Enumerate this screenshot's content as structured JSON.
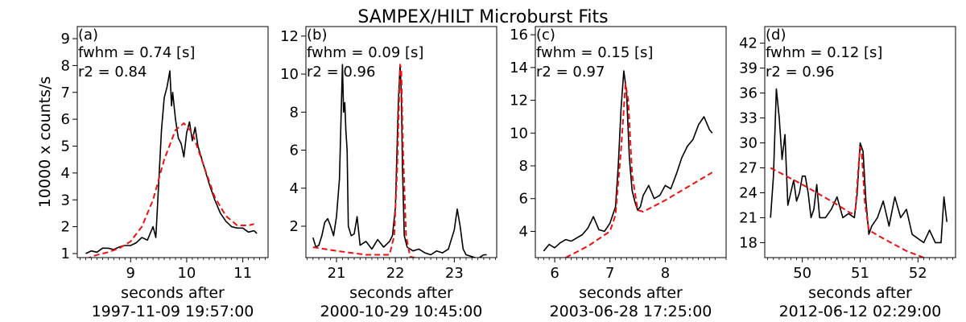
{
  "figure_title": "SAMPEX/HILT Microburst Fits",
  "colors": {
    "data": "#000000",
    "fit": "#ee1111",
    "frame": "#000000"
  },
  "chart_data": [
    {
      "type": "line",
      "panel_label": "(a)",
      "annotations": [
        "fwhm = 0.74 [s]",
        "r2 = 0.84"
      ],
      "ylabel": "10000 x counts/s",
      "xlabel": "seconds after",
      "xlabel_date": "1997-11-09 19:57:00",
      "xlim": [
        8.05,
        11.45
      ],
      "ylim": [
        0.85,
        9.45
      ],
      "xticks": [
        9,
        10,
        11
      ],
      "yticks": [
        1,
        2,
        3,
        4,
        5,
        6,
        7,
        8,
        9
      ],
      "series": [
        {
          "role": "data",
          "x": [
            8.2,
            8.3,
            8.4,
            8.5,
            8.6,
            8.7,
            8.8,
            8.9,
            9.0,
            9.1,
            9.2,
            9.3,
            9.4,
            9.45,
            9.5,
            9.55,
            9.6,
            9.65,
            9.7,
            9.73,
            9.75,
            9.8,
            9.85,
            9.9,
            9.95,
            10.0,
            10.05,
            10.1,
            10.15,
            10.2,
            10.3,
            10.4,
            10.5,
            10.6,
            10.7,
            10.8,
            10.9,
            11.0,
            11.1,
            11.2,
            11.25
          ],
          "y": [
            1.0,
            1.1,
            1.05,
            1.2,
            1.2,
            1.15,
            1.25,
            1.3,
            1.3,
            1.4,
            1.6,
            1.5,
            2.0,
            1.6,
            3.6,
            5.6,
            6.8,
            7.2,
            7.8,
            6.5,
            7.0,
            6.0,
            5.3,
            5.1,
            4.6,
            5.5,
            5.9,
            5.2,
            5.7,
            5.0,
            4.3,
            3.6,
            3.0,
            2.5,
            2.2,
            2.0,
            1.95,
            1.95,
            1.8,
            1.85,
            1.75
          ]
        },
        {
          "role": "fit",
          "dashed": true,
          "x": [
            8.2,
            8.4,
            8.6,
            8.8,
            9.0,
            9.2,
            9.4,
            9.6,
            9.8,
            9.95,
            10.1,
            10.3,
            10.5,
            10.7,
            10.9,
            11.1,
            11.2
          ],
          "y": [
            0.8,
            0.95,
            1.05,
            1.2,
            1.45,
            2.0,
            3.0,
            4.5,
            5.6,
            5.85,
            5.5,
            4.3,
            3.1,
            2.4,
            2.05,
            2.05,
            2.1
          ]
        }
      ]
    },
    {
      "type": "line",
      "panel_label": "(b)",
      "annotations": [
        "fwhm = 0.09 [s]",
        "r2 = 0.96"
      ],
      "ylabel": "",
      "xlabel": "seconds after",
      "xlabel_date": "2000-10-29 10:45:00",
      "xlim": [
        20.48,
        23.72
      ],
      "ylim": [
        0.35,
        12.5
      ],
      "xticks": [
        21,
        22,
        23
      ],
      "yticks": [
        2,
        4,
        6,
        8,
        10,
        12
      ],
      "series": [
        {
          "role": "data",
          "x": [
            20.6,
            20.65,
            20.7,
            20.75,
            20.8,
            20.85,
            20.9,
            20.95,
            21.0,
            21.05,
            21.1,
            21.12,
            21.14,
            21.16,
            21.18,
            21.2,
            21.25,
            21.3,
            21.35,
            21.4,
            21.5,
            21.6,
            21.7,
            21.8,
            21.9,
            21.95,
            22.0,
            22.05,
            22.08,
            22.1,
            22.12,
            22.15,
            22.2,
            22.3,
            22.4,
            22.5,
            22.6,
            22.7,
            22.8,
            22.9,
            23.0,
            23.05,
            23.1,
            23.15,
            23.2,
            23.3,
            23.4,
            23.5,
            23.55
          ],
          "y": [
            1.4,
            0.9,
            1.0,
            1.5,
            2.2,
            2.4,
            2.0,
            1.5,
            2.5,
            4.5,
            10.5,
            8.0,
            8.5,
            7.0,
            6.0,
            2.0,
            1.5,
            1.6,
            2.5,
            1.0,
            1.2,
            0.8,
            1.3,
            0.9,
            1.2,
            1.5,
            3.0,
            8.5,
            10.5,
            9.0,
            5.0,
            1.5,
            0.9,
            0.7,
            0.8,
            0.6,
            0.5,
            0.7,
            0.6,
            0.8,
            1.8,
            2.9,
            2.0,
            0.8,
            0.5,
            0.4,
            0.3,
            0.5,
            0.5
          ]
        },
        {
          "role": "fit",
          "dashed": true,
          "x": [
            20.6,
            21.0,
            21.5,
            21.9,
            21.98,
            22.03,
            22.08,
            22.1,
            22.13,
            22.18,
            22.25,
            22.5,
            23.0,
            23.3,
            23.55
          ],
          "y": [
            0.9,
            0.7,
            0.5,
            0.5,
            1.5,
            5.0,
            10.5,
            10.2,
            6.0,
            1.5,
            0.4,
            0.2,
            -0.2,
            -0.4,
            -0.6
          ]
        }
      ]
    },
    {
      "type": "line",
      "panel_label": "(c)",
      "annotations": [
        "fwhm = 0.15 [s]",
        "r2 = 0.97"
      ],
      "ylabel": "",
      "xlabel": "seconds after",
      "xlabel_date": "2003-06-28 17:25:00",
      "xlim": [
        5.65,
        9.1
      ],
      "ylim": [
        2.4,
        16.5
      ],
      "xticks": [
        6,
        7,
        8
      ],
      "yticks": [
        4,
        6,
        8,
        10,
        12,
        14,
        16
      ],
      "series": [
        {
          "role": "data",
          "x": [
            5.8,
            5.9,
            6.0,
            6.1,
            6.2,
            6.3,
            6.4,
            6.5,
            6.6,
            6.7,
            6.8,
            6.9,
            7.0,
            7.1,
            7.15,
            7.2,
            7.25,
            7.3,
            7.35,
            7.4,
            7.45,
            7.5,
            7.55,
            7.6,
            7.7,
            7.8,
            7.9,
            8.0,
            8.1,
            8.2,
            8.3,
            8.4,
            8.5,
            8.6,
            8.7,
            8.8,
            8.85
          ],
          "y": [
            2.8,
            3.2,
            3.0,
            3.3,
            3.5,
            3.4,
            3.6,
            3.8,
            4.2,
            4.9,
            4.1,
            4.0,
            4.5,
            5.5,
            8.0,
            11.5,
            13.8,
            12.5,
            8.5,
            6.5,
            5.8,
            5.3,
            5.5,
            6.2,
            6.8,
            6.0,
            6.2,
            6.8,
            6.6,
            7.5,
            8.5,
            9.2,
            9.6,
            10.5,
            11.0,
            10.2,
            10.0
          ]
        },
        {
          "role": "fit",
          "dashed": true,
          "x": [
            6.2,
            6.6,
            7.0,
            7.1,
            7.2,
            7.28,
            7.33,
            7.4,
            7.5,
            7.6,
            8.0,
            8.4,
            8.85
          ],
          "y": [
            2.4,
            3.1,
            4.0,
            5.0,
            9.0,
            13.0,
            12.0,
            7.5,
            5.3,
            5.2,
            5.9,
            6.7,
            7.6
          ]
        }
      ]
    },
    {
      "type": "line",
      "panel_label": "(d)",
      "annotations": [
        "fwhm = 0.12 [s]",
        "r2 = 0.96"
      ],
      "ylabel": "",
      "xlabel": "seconds after",
      "xlabel_date": "2012-06-12 02:29:00",
      "xlim": [
        49.35,
        52.65
      ],
      "ylim": [
        16.2,
        44.0
      ],
      "xticks": [
        50,
        51,
        52
      ],
      "yticks": [
        18,
        21,
        24,
        27,
        30,
        33,
        36,
        39,
        42
      ],
      "series": [
        {
          "role": "data",
          "x": [
            49.45,
            49.5,
            49.55,
            49.6,
            49.65,
            49.7,
            49.75,
            49.8,
            49.85,
            49.9,
            49.95,
            50.0,
            50.05,
            50.1,
            50.15,
            50.2,
            50.25,
            50.3,
            50.4,
            50.5,
            50.6,
            50.7,
            50.8,
            50.9,
            50.95,
            51.0,
            51.05,
            51.1,
            51.15,
            51.2,
            51.3,
            51.4,
            51.5,
            51.6,
            51.7,
            51.8,
            51.9,
            52.0,
            52.1,
            52.2,
            52.3,
            52.4,
            52.45,
            52.5
          ],
          "y": [
            21.0,
            26.0,
            36.5,
            33.0,
            28.0,
            31.0,
            22.5,
            24.0,
            25.5,
            23.0,
            24.0,
            26.0,
            26.0,
            24.0,
            21.0,
            22.0,
            25.0,
            21.0,
            21.0,
            22.0,
            23.5,
            21.0,
            21.5,
            21.0,
            24.0,
            30.0,
            29.0,
            23.0,
            19.0,
            20.0,
            21.0,
            23.0,
            20.0,
            23.5,
            21.0,
            22.0,
            19.0,
            18.5,
            18.0,
            19.5,
            18.0,
            18.0,
            23.5,
            20.5
          ]
        },
        {
          "role": "fit",
          "dashed": true,
          "x": [
            49.45,
            50.0,
            50.5,
            50.85,
            50.92,
            50.97,
            51.0,
            51.03,
            51.08,
            51.15,
            51.4,
            51.8,
            52.1
          ],
          "y": [
            27.0,
            25.0,
            23.0,
            21.5,
            22.0,
            27.0,
            29.5,
            28.5,
            23.0,
            19.5,
            18.5,
            17.0,
            16.2
          ]
        }
      ]
    }
  ]
}
